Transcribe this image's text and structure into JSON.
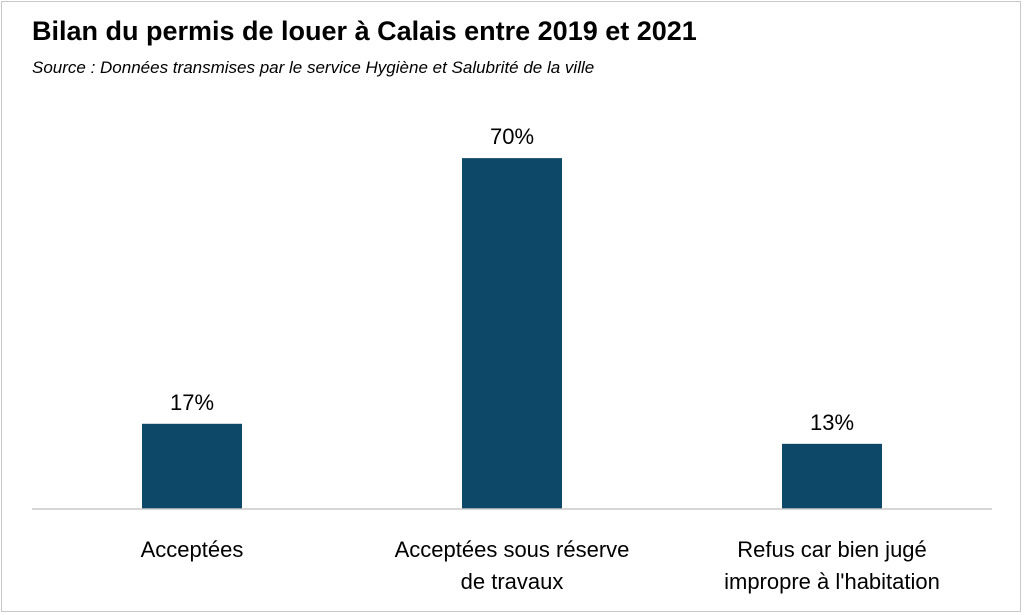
{
  "title": "Bilan du permis de louer à Calais entre 2019 et 2021",
  "subtitle": "Source : Données transmises par le service Hygiène et Salubrité de la ville",
  "chart_data": {
    "type": "bar",
    "categories": [
      [
        "Acceptées"
      ],
      [
        "Acceptées sous réserve",
        "de travaux"
      ],
      [
        "Refus car bien jugé",
        "impropre à l'habitation"
      ]
    ],
    "values": [
      17,
      70,
      13
    ],
    "data_labels": [
      "17%",
      "70%",
      "13%"
    ],
    "ylim": [
      0,
      80
    ],
    "grid": false,
    "legend": "none",
    "colors": {
      "bar": "#0e4868",
      "axis": "#c8c8c8"
    }
  }
}
